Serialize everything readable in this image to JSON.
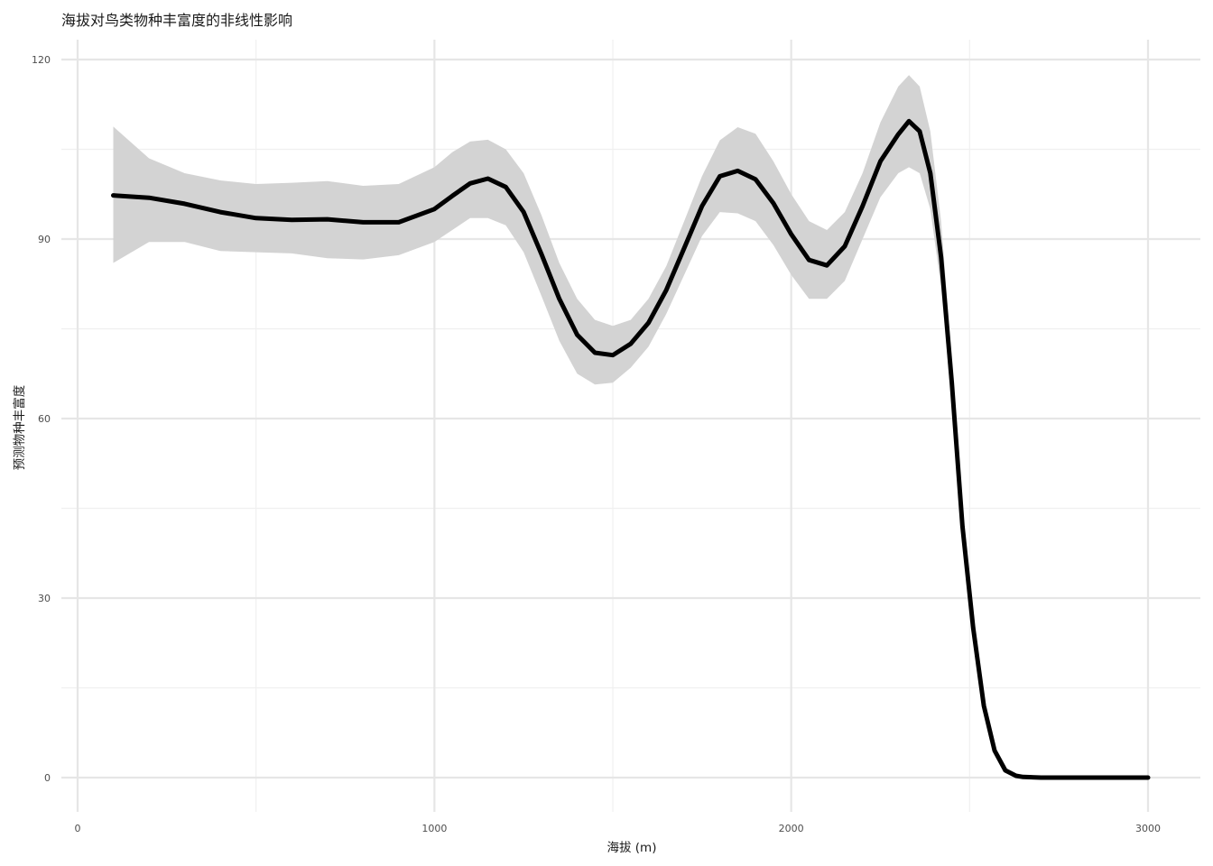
{
  "chart_data": {
    "type": "line",
    "title": "海拔对鸟类物种丰富度的非线性影响",
    "xlabel": "海拔 (m)",
    "ylabel": "预测物种丰富度",
    "xlim": [
      -40,
      3080
    ],
    "ylim": [
      -6,
      123
    ],
    "x_ticks": [
      0,
      1000,
      2000,
      3000
    ],
    "y_ticks": [
      0,
      30,
      60,
      90,
      120
    ],
    "grid": true,
    "colors": {
      "line": "#000000",
      "ribbon": "#d3d3d3",
      "grid_major": "#e6e6e6",
      "grid_minor": "#f0f0f0"
    },
    "series": [
      {
        "x": [
          100,
          200,
          300,
          400,
          500,
          600,
          700,
          800,
          900,
          1000,
          1050,
          1100,
          1150,
          1200,
          1250,
          1300,
          1350,
          1400,
          1450,
          1500,
          1550,
          1600,
          1650,
          1700,
          1750,
          1800,
          1850,
          1900,
          1950,
          2000,
          2050,
          2100,
          2150,
          2200,
          2250,
          2300,
          2330,
          2360,
          2390,
          2420,
          2450,
          2480,
          2510,
          2540,
          2570,
          2600,
          2630,
          2650,
          2700,
          2800,
          2900,
          3000
        ],
        "y": [
          97.3,
          96.9,
          95.9,
          94.5,
          93.5,
          93.2,
          93.3,
          92.8,
          92.8,
          95.0,
          97.2,
          99.3,
          100.1,
          98.7,
          94.5,
          87.5,
          80.0,
          74.0,
          71.0,
          70.6,
          72.5,
          76.0,
          81.5,
          88.5,
          95.5,
          100.5,
          101.4,
          100.0,
          96.0,
          90.8,
          86.5,
          85.6,
          88.8,
          95.5,
          103.0,
          107.5,
          109.7,
          108.0,
          101.0,
          87.0,
          66.0,
          42.0,
          25.0,
          12.0,
          4.5,
          1.2,
          0.3,
          0.1,
          0,
          0,
          0,
          0
        ],
        "lower": [
          86.0,
          89.5,
          89.5,
          88.0,
          87.8,
          87.6,
          86.8,
          86.6,
          87.3,
          89.5,
          91.5,
          93.5,
          93.5,
          92.3,
          87.8,
          80.5,
          73.0,
          67.5,
          65.7,
          66.0,
          68.5,
          72.0,
          77.5,
          84.0,
          90.5,
          94.5,
          94.3,
          93.0,
          89.0,
          84.0,
          80.0,
          80.0,
          83.0,
          90.0,
          97.0,
          101.0,
          102.0,
          101.0,
          95.0,
          82.0,
          62.0,
          39.5,
          23.0,
          11.0,
          3.8,
          0.8,
          0.1,
          0.0,
          0,
          0,
          0,
          0
        ],
        "upper": [
          108.8,
          103.5,
          101.0,
          99.8,
          99.2,
          99.4,
          99.7,
          98.9,
          99.2,
          102.0,
          104.5,
          106.3,
          106.6,
          105.0,
          101.0,
          94.0,
          86.0,
          80.0,
          76.5,
          75.5,
          76.5,
          80.0,
          85.5,
          93.0,
          100.5,
          106.5,
          108.7,
          107.6,
          103.0,
          97.5,
          93.0,
          91.5,
          94.5,
          101.0,
          109.5,
          115.5,
          117.4,
          115.5,
          108.0,
          93.0,
          70.0,
          45.0,
          27.0,
          13.0,
          5.2,
          1.6,
          0.4,
          0.2,
          0,
          0,
          0,
          0
        ]
      }
    ]
  }
}
